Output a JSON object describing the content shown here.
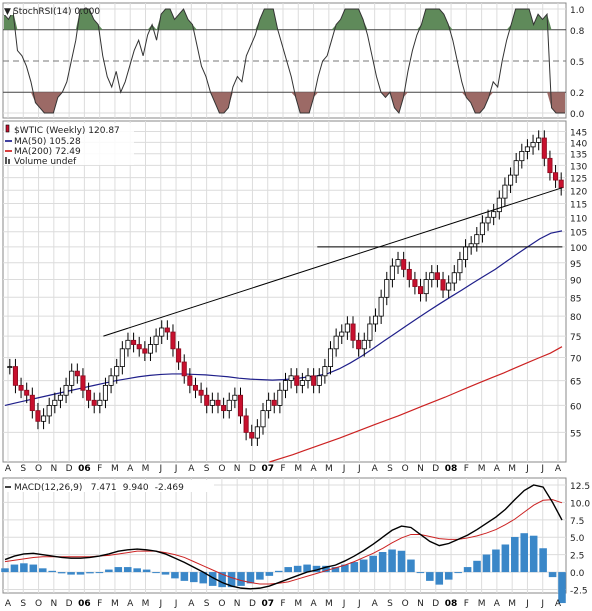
{
  "chart_data": [
    {
      "type": "line",
      "panel": "stochrsi",
      "legend": [
        {
          "text": "StochRSI(14) 0.000",
          "color": "#000000",
          "icon": "line-icon"
        }
      ],
      "ylim": [
        0,
        1
      ],
      "yticks": [
        {
          "value": 1.0,
          "label": "1.0"
        },
        {
          "value": 0.8,
          "label": "0.8"
        },
        {
          "value": 0.5,
          "label": "0.5"
        },
        {
          "value": 0.2,
          "label": "0.2"
        },
        {
          "value": 0.0,
          "label": "0.0"
        }
      ],
      "overbought": 0.8,
      "oversold": 0.2,
      "midline": 0.5,
      "series": [
        {
          "color": "#333333",
          "values": [
            0.95,
            0.9,
            0.98,
            0.6,
            0.55,
            0.45,
            0.3,
            0.1,
            0.05,
            0.0,
            0.0,
            0.0,
            0.15,
            0.2,
            0.3,
            0.5,
            0.7,
            1.0,
            1.0,
            1.0,
            0.9,
            0.85,
            0.55,
            0.35,
            0.25,
            0.4,
            0.2,
            0.3,
            0.45,
            0.6,
            0.7,
            0.55,
            0.75,
            0.85,
            0.7,
            0.95,
            1.0,
            1.0,
            0.9,
            0.95,
            1.0,
            0.9,
            0.85,
            0.65,
            0.45,
            0.35,
            0.2,
            0.1,
            0.0,
            0.0,
            0.05,
            0.25,
            0.35,
            0.3,
            0.55,
            0.65,
            0.75,
            0.9,
            1.0,
            1.0,
            1.0,
            0.8,
            0.65,
            0.5,
            0.35,
            0.15,
            0.0,
            0.0,
            0.0,
            0.15,
            0.35,
            0.5,
            0.55,
            0.7,
            0.85,
            0.9,
            1.0,
            1.0,
            1.0,
            1.0,
            0.9,
            0.75,
            0.55,
            0.35,
            0.2,
            0.15,
            0.2,
            0.05,
            0.0,
            0.15,
            0.4,
            0.6,
            0.75,
            0.85,
            1.0,
            1.0,
            1.0,
            1.0,
            0.95,
            0.85,
            0.7,
            0.5,
            0.3,
            0.15,
            0.1,
            0.0,
            0.0,
            0.05,
            0.15,
            0.3,
            0.25,
            0.5,
            0.7,
            0.85,
            1.0,
            1.0,
            1.0,
            1.0,
            0.85,
            0.95,
            0.9,
            0.95,
            0.05,
            0.0,
            0.0,
            0.0
          ]
        }
      ]
    },
    {
      "type": "candlestick",
      "panel": "price",
      "legend": [
        {
          "text": "$WTIC (Weekly) 120.87",
          "color": "#000000",
          "icon": "candlestick-icon"
        },
        {
          "text": "MA(50) 105.28",
          "color": "#000080",
          "icon": "line-icon"
        },
        {
          "text": "MA(200) 72.49",
          "color": "#cc0000",
          "icon": "line-icon"
        },
        {
          "text": "Volume undef",
          "color": "#555555",
          "icon": "volume-icon"
        }
      ],
      "ylim": [
        50,
        150
      ],
      "log_scale": true,
      "yticks": [
        145,
        140,
        135,
        130,
        125,
        120,
        115,
        110,
        105,
        100,
        95,
        90,
        85,
        80,
        75,
        70,
        65,
        60,
        55
      ],
      "xlabels": [
        "A",
        "S",
        "O",
        "N",
        "D",
        "06",
        "F",
        "M",
        "A",
        "M",
        "J",
        "J",
        "A",
        "S",
        "O",
        "N",
        "D",
        "07",
        "F",
        "M",
        "A",
        "M",
        "J",
        "J",
        "A",
        "S",
        "O",
        "N",
        "D",
        "08",
        "F",
        "M",
        "A",
        "M",
        "J",
        "J",
        "A"
      ],
      "closes": [
        68,
        64,
        63,
        62,
        59,
        57,
        58,
        60,
        61,
        62,
        64,
        67,
        66,
        63,
        61,
        60,
        61,
        64,
        66,
        68,
        72,
        74,
        73,
        72,
        71,
        73,
        75,
        77,
        76,
        72,
        69,
        66,
        64,
        63,
        62,
        60,
        61,
        60,
        59,
        61,
        62,
        58,
        55,
        54,
        56,
        59,
        61,
        60,
        63,
        65,
        66,
        64,
        65,
        66,
        64,
        66,
        68,
        72,
        75,
        76,
        78,
        74,
        72,
        74,
        78,
        80,
        85,
        90,
        94,
        96,
        93,
        90,
        88,
        86,
        90,
        92,
        90,
        87,
        89,
        92,
        96,
        100,
        101,
        104,
        108,
        110,
        112,
        117,
        122,
        126,
        132,
        136,
        138,
        140,
        142,
        133,
        127,
        124,
        121
      ],
      "ma50": [
        60,
        60.5,
        61,
        61.5,
        62,
        62.5,
        63,
        63.5,
        64,
        64.5,
        65,
        65.4,
        65.8,
        66.1,
        66.3,
        66.4,
        66.4,
        66.3,
        66.2,
        66.0,
        65.8,
        65.5,
        65.3,
        65.2,
        65.1,
        65.2,
        65.4,
        65.7,
        66,
        66.5,
        67.5,
        68.8,
        70.3,
        72,
        73.8,
        75.6,
        77.5,
        79.4,
        81.3,
        83.2,
        85.1,
        87,
        89,
        91,
        93,
        95.4,
        97.8,
        100.2,
        102.6,
        104.5,
        105.28
      ],
      "ma200": [
        50,
        50.6,
        51.2,
        51.9,
        52.6,
        53.3,
        54.0,
        54.8,
        55.6,
        56.4,
        57.2,
        58.0,
        58.9,
        59.8,
        60.7,
        61.6,
        62.6,
        63.6,
        64.6,
        65.6,
        66.6,
        67.7,
        68.8,
        69.9,
        71.0,
        72.49
      ],
      "ma50_start_index": 0,
      "ma200_start_index": 73,
      "trendlines": [
        {
          "from": [
            21,
            75
          ],
          "to": [
            124,
            121
          ]
        },
        {
          "from": [
            69,
            100
          ],
          "to": [
            124,
            100
          ]
        }
      ]
    },
    {
      "type": "line",
      "panel": "macd",
      "legend": [
        {
          "text": "MACD(12,26,9)",
          "color": "#000000",
          "icon": "line-icon"
        },
        {
          "text": "7.471",
          "color": "#000000"
        },
        {
          "text": "9.940",
          "color": "#cc0000"
        },
        {
          "text": "-2.469",
          "color": "#008080"
        }
      ],
      "ylim": [
        -3.0,
        13.5
      ],
      "yticks": [
        {
          "value": 12.5,
          "label": "12.5"
        },
        {
          "value": 10.0,
          "label": "10.0"
        },
        {
          "value": 7.5,
          "label": "7.5"
        },
        {
          "value": 5.0,
          "label": "5.0"
        },
        {
          "value": 2.5,
          "label": "2.5"
        },
        {
          "value": 0.0,
          "label": "0.0"
        },
        {
          "value": -2.5,
          "label": "-2.5"
        }
      ],
      "macd": [
        1.8,
        2.3,
        2.6,
        2.7,
        2.5,
        2.3,
        2.1,
        2.0,
        2.0,
        2.1,
        2.3,
        2.6,
        3.0,
        3.2,
        3.3,
        3.2,
        3.0,
        2.6,
        2.0,
        1.4,
        0.7,
        0.0,
        -0.8,
        -1.5,
        -2.0,
        -2.3,
        -2.4,
        -2.3,
        -2.0,
        -1.5,
        -1.0,
        -0.5,
        0.0,
        0.3,
        0.7,
        1.0,
        1.6,
        2.3,
        3.1,
        4.0,
        5.0,
        6.0,
        6.6,
        6.4,
        5.4,
        4.4,
        3.8,
        4.1,
        4.7,
        5.3,
        6.1,
        7.0,
        7.9,
        9.0,
        10.4,
        11.7,
        12.5,
        12.2,
        10.0,
        7.471
      ],
      "signal": [
        1.5,
        1.7,
        1.9,
        2.1,
        2.2,
        2.2,
        2.2,
        2.2,
        2.2,
        2.2,
        2.3,
        2.4,
        2.6,
        2.8,
        3.0,
        3.0,
        3.0,
        2.8,
        2.5,
        2.1,
        1.5,
        0.9,
        0.3,
        -0.3,
        -0.8,
        -1.2,
        -1.5,
        -1.7,
        -1.7,
        -1.6,
        -1.4,
        -1.0,
        -0.6,
        -0.2,
        0.2,
        0.6,
        1.0,
        1.5,
        2.1,
        2.7,
        3.4,
        4.2,
        4.9,
        5.4,
        5.4,
        5.1,
        4.8,
        4.7,
        4.7,
        4.9,
        5.2,
        5.6,
        6.1,
        6.8,
        7.6,
        8.6,
        9.6,
        10.3,
        10.4,
        9.94
      ]
    }
  ],
  "date_axis": {
    "labels": [
      "A",
      "S",
      "O",
      "N",
      "D",
      "06",
      "F",
      "M",
      "A",
      "M",
      "J",
      "J",
      "A",
      "S",
      "O",
      "N",
      "D",
      "07",
      "F",
      "M",
      "A",
      "M",
      "J",
      "J",
      "A",
      "S",
      "O",
      "N",
      "D",
      "08",
      "F",
      "M",
      "A",
      "M",
      "J",
      "J",
      "A"
    ],
    "bold_labels": [
      "06",
      "07",
      "08"
    ]
  }
}
